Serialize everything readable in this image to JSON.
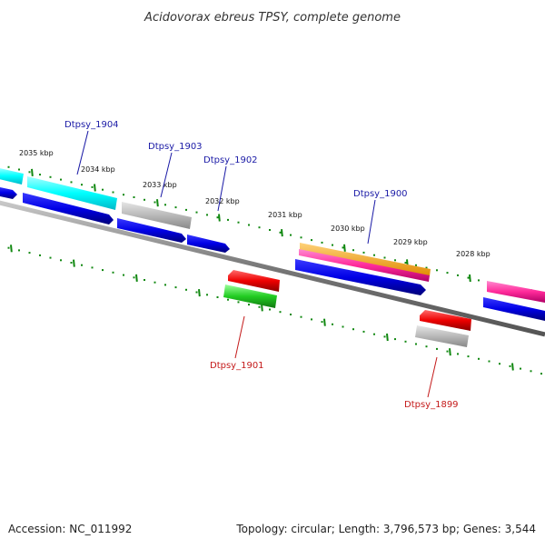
{
  "title": "Acidovorax ebreus TPSY, complete genome",
  "footer": {
    "accession": "Accession: NC_011992",
    "summary": "Topology: circular; Length: 3,796,573 bp; Genes: 3,544"
  },
  "colors": {
    "backbone": "#7a7a7a",
    "tick": "#118811",
    "forward_label": "#1a1aa6",
    "reverse_label": "#c41a1a"
  },
  "ticks": [
    "2035 kbp",
    "2034 kbp",
    "2033 kbp",
    "2032 kbp",
    "2031 kbp",
    "2030 kbp",
    "2029 kbp",
    "2028 kbp"
  ],
  "gene_labels": {
    "forward": [
      "Dtpsy_1904",
      "Dtpsy_1903",
      "Dtpsy_1902",
      "Dtpsy_1900"
    ],
    "reverse": [
      "Dtpsy_1901",
      "Dtpsy_1899"
    ]
  }
}
